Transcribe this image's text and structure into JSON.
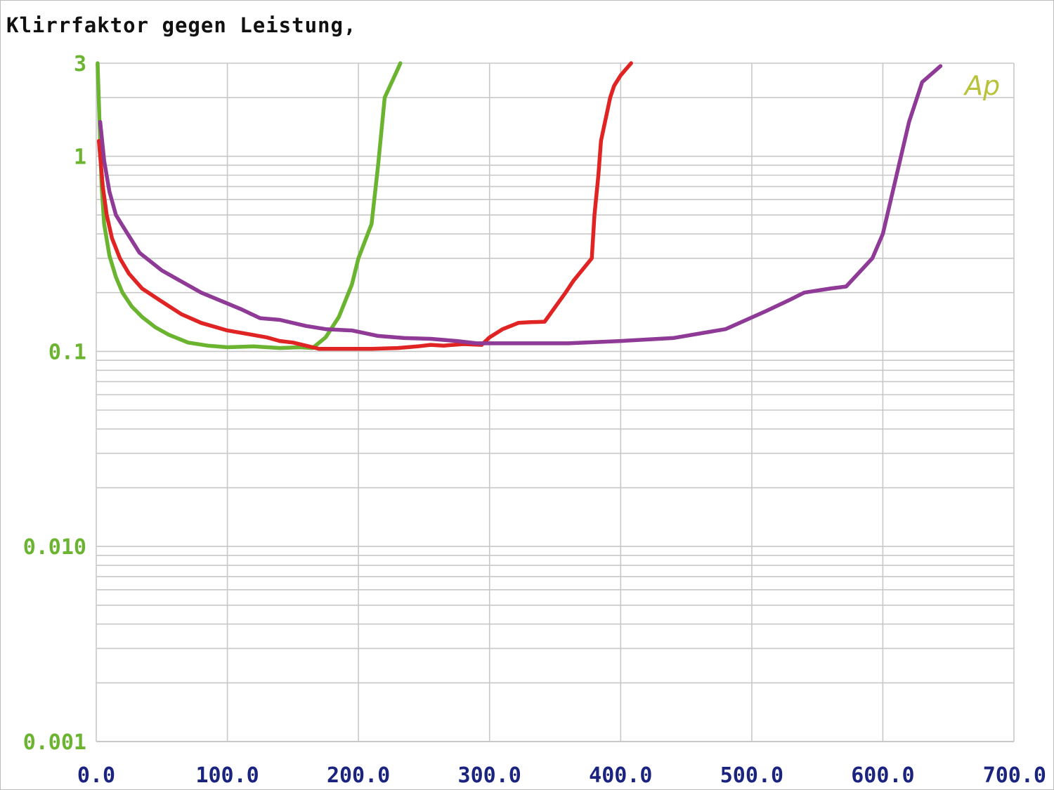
{
  "chart_data": {
    "type": "line",
    "title": "Klirrfaktor gegen Leistung,",
    "watermark": "Ap",
    "xlabel": "",
    "ylabel": "",
    "xlim": [
      0,
      700
    ],
    "ylim": [
      0.001,
      3
    ],
    "yscale": "log",
    "grid": true,
    "x_ticks": [
      "0.0",
      "100.0",
      "200.0",
      "300.0",
      "400.0",
      "500.0",
      "600.0",
      "700.0"
    ],
    "y_ticks": [
      {
        "value": 3,
        "label": "3"
      },
      {
        "value": 1,
        "label": "1"
      },
      {
        "value": 0.1,
        "label": "0.1"
      },
      {
        "value": 0.01,
        "label": "0.010"
      },
      {
        "value": 0.001,
        "label": "0.001"
      }
    ],
    "colors": {
      "grid": "#c8c8c8",
      "axis_text": "#1a237e",
      "y_text": "#6ab430",
      "watermark": "#b8c23c"
    },
    "series": [
      {
        "color": "#6ab430",
        "x": [
          1,
          4,
          6,
          10,
          15,
          20,
          27,
          35,
          45,
          55,
          70,
          85,
          100,
          120,
          140,
          155,
          165,
          175,
          185,
          195,
          200,
          210,
          215,
          220,
          230,
          232
        ],
        "y": [
          3.0,
          0.72,
          0.45,
          0.31,
          0.24,
          0.2,
          0.17,
          0.15,
          0.133,
          0.122,
          0.111,
          0.107,
          0.105,
          0.106,
          0.104,
          0.105,
          0.104,
          0.118,
          0.15,
          0.22,
          0.3,
          0.45,
          0.9,
          2.0,
          2.8,
          3.0
        ]
      },
      {
        "color": "#e02424",
        "x": [
          2,
          5,
          8,
          12,
          18,
          25,
          35,
          50,
          65,
          80,
          100,
          115,
          130,
          140,
          150,
          170,
          190,
          210,
          230,
          245,
          255,
          265,
          280,
          294,
          300,
          310,
          322,
          330,
          342,
          358,
          364,
          378,
          380,
          383,
          385,
          392,
          395,
          400,
          408
        ],
        "y": [
          1.2,
          0.7,
          0.5,
          0.38,
          0.3,
          0.25,
          0.21,
          0.18,
          0.155,
          0.14,
          0.128,
          0.123,
          0.118,
          0.113,
          0.111,
          0.103,
          0.103,
          0.103,
          0.104,
          0.106,
          0.108,
          0.107,
          0.109,
          0.108,
          0.118,
          0.13,
          0.14,
          0.141,
          0.142,
          0.2,
          0.23,
          0.3,
          0.5,
          0.8,
          1.2,
          2.0,
          2.3,
          2.6,
          3.0
        ]
      },
      {
        "color": "#8e3a96",
        "x": [
          3,
          6,
          10,
          15,
          22,
          33,
          50,
          80,
          110,
          125,
          140,
          160,
          175,
          195,
          215,
          235,
          255,
          275,
          290,
          320,
          360,
          400,
          440,
          480,
          510,
          530,
          540,
          560,
          572,
          592,
          600,
          620,
          630,
          644
        ],
        "y": [
          1.5,
          0.95,
          0.66,
          0.5,
          0.42,
          0.32,
          0.26,
          0.2,
          0.165,
          0.148,
          0.145,
          0.135,
          0.13,
          0.128,
          0.12,
          0.117,
          0.116,
          0.113,
          0.11,
          0.11,
          0.11,
          0.113,
          0.117,
          0.13,
          0.16,
          0.185,
          0.2,
          0.21,
          0.215,
          0.3,
          0.4,
          1.5,
          2.4,
          2.9
        ]
      }
    ]
  }
}
